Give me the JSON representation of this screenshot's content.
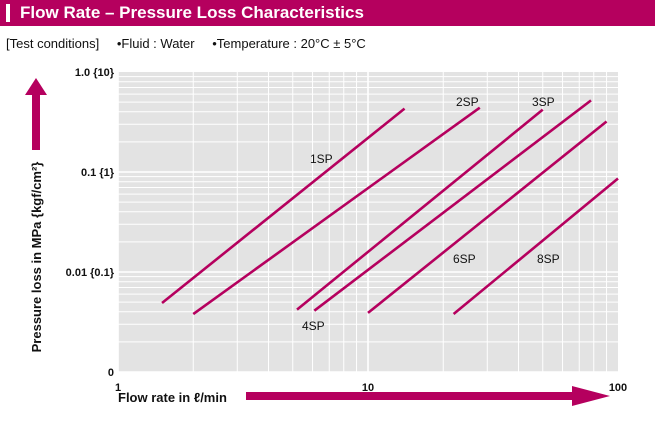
{
  "header": {
    "title": "Flow Rate – Pressure Loss Characteristics"
  },
  "conditions": {
    "label": "[Test conditions]",
    "fluid": "•Fluid : Water",
    "temperature": "•Temperature : 20°C ± 5°C"
  },
  "colors": {
    "brand": "#b5005e",
    "plot_bg": "#e3e3e3",
    "grid": "#ffffff"
  },
  "chart_data": {
    "type": "line",
    "xlabel": "Flow rate in ℓ/min",
    "ylabel": "Pressure loss in MPa {kgf/cm²}",
    "xscale": "log",
    "yscale": "log",
    "xlim": [
      1,
      100
    ],
    "ylim": [
      0.001,
      1.0
    ],
    "grid": true,
    "x_ticks": [
      {
        "value": 1,
        "label": "1"
      },
      {
        "value": 10,
        "label": "10"
      },
      {
        "value": 100,
        "label": "100"
      }
    ],
    "y_ticks": [
      {
        "value": 0.001,
        "label": "0"
      },
      {
        "value": 0.01,
        "label": "0.01 {0.1}"
      },
      {
        "value": 0.1,
        "label": "0.1 {1}"
      },
      {
        "value": 1.0,
        "label": "1.0 {10}"
      }
    ],
    "series": [
      {
        "name": "1SP",
        "points": [
          [
            1.5,
            0.0049
          ],
          [
            14,
            0.43
          ]
        ]
      },
      {
        "name": "2SP",
        "points": [
          [
            2,
            0.0038
          ],
          [
            28,
            0.44
          ]
        ]
      },
      {
        "name": "3SP",
        "points": [
          [
            5.2,
            0.0042
          ],
          [
            50,
            0.42
          ]
        ]
      },
      {
        "name": "4SP",
        "points": [
          [
            6.1,
            0.0041
          ],
          [
            78,
            0.52
          ]
        ]
      },
      {
        "name": "6SP",
        "points": [
          [
            10,
            0.0039
          ],
          [
            90,
            0.32
          ]
        ]
      },
      {
        "name": "8SP",
        "points": [
          [
            22,
            0.0038
          ],
          [
            100,
            0.086
          ]
        ]
      }
    ]
  }
}
